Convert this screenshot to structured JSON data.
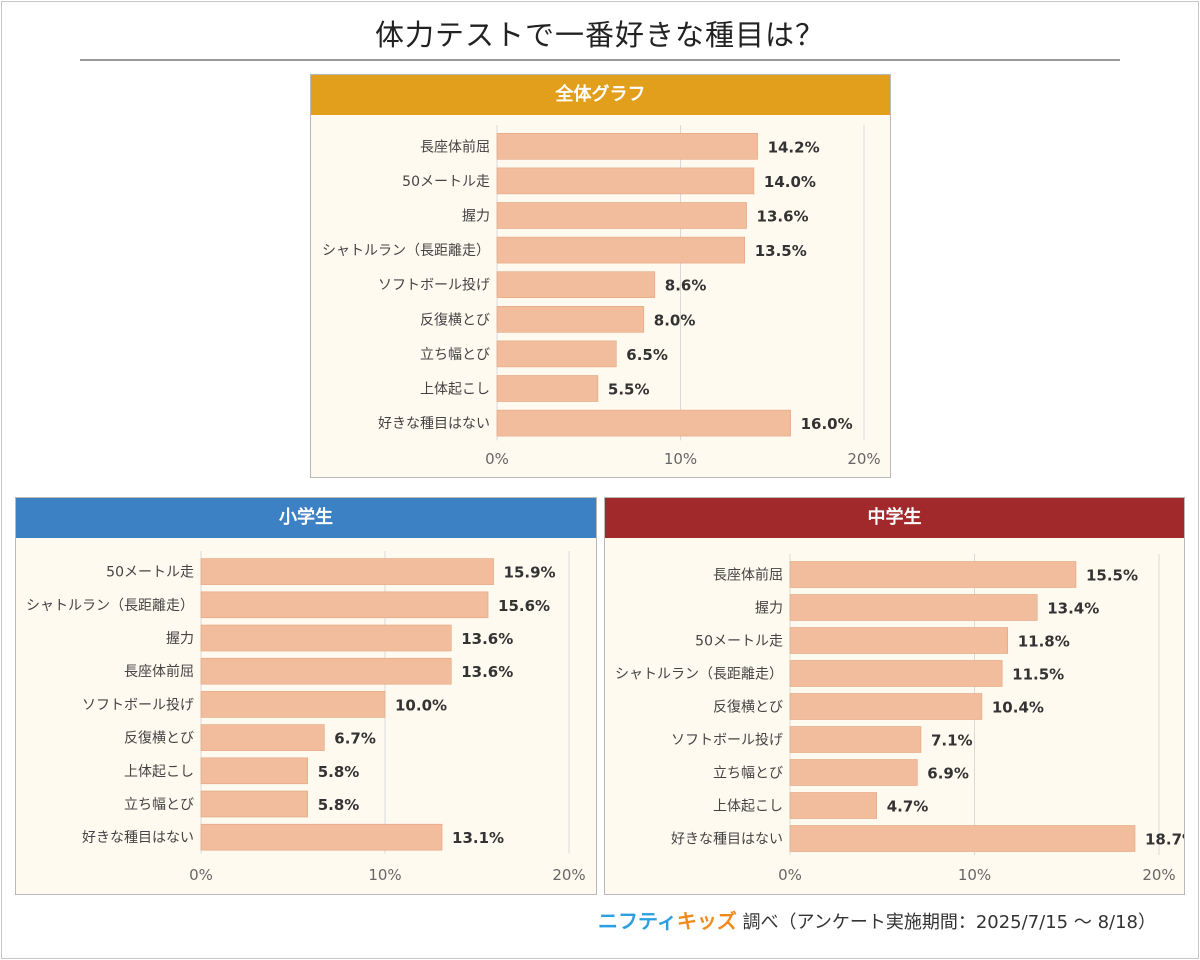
{
  "title": "体力テストで一番好きな種目は？",
  "footer": {
    "brand_part1": "ニフティ",
    "brand_part2": "キッズ",
    "note": " 調べ（アンケート実施期間：2025/7/15 ～ 8/18）"
  },
  "colors": {
    "bar": "#f1bd9c",
    "bar_stroke": "#e3a47f",
    "grid": "#d9d9d9",
    "panel_bg": "#fffaf0",
    "header_all": "#e29f1c",
    "header_elementary": "#3d81c5",
    "header_junior": "#a1282b"
  },
  "chart_data": [
    {
      "type": "bar",
      "orientation": "horizontal",
      "title": "全体グラフ",
      "categories": [
        "長座体前屈",
        "50メートル走",
        "握力",
        "シャトルラン（長距離走）",
        "ソフトボール投げ",
        "反復横とび",
        "立ち幅とび",
        "上体起こし",
        "好きな種目はない"
      ],
      "values": [
        14.2,
        14.0,
        13.6,
        13.5,
        8.6,
        8.0,
        6.5,
        5.5,
        16.0
      ],
      "value_suffix": "%",
      "xlim": [
        0,
        20
      ],
      "xticks": [
        "0%",
        "10%",
        "20%"
      ],
      "grid": true
    },
    {
      "type": "bar",
      "orientation": "horizontal",
      "title": "小学生",
      "categories": [
        "50メートル走",
        "シャトルラン（長距離走）",
        "握力",
        "長座体前屈",
        "ソフトボール投げ",
        "反復横とび",
        "上体起こし",
        "立ち幅とび",
        "好きな種目はない"
      ],
      "values": [
        15.9,
        15.6,
        13.6,
        13.6,
        10.0,
        6.7,
        5.8,
        5.8,
        13.1
      ],
      "value_suffix": "%",
      "xlim": [
        0,
        20
      ],
      "xticks": [
        "0%",
        "10%",
        "20%"
      ],
      "grid": true
    },
    {
      "type": "bar",
      "orientation": "horizontal",
      "title": "中学生",
      "categories": [
        "長座体前屈",
        "握力",
        "50メートル走",
        "シャトルラン（長距離走）",
        "反復横とび",
        "ソフトボール投げ",
        "立ち幅とび",
        "上体起こし",
        "好きな種目はない"
      ],
      "values": [
        15.5,
        13.4,
        11.8,
        11.5,
        10.4,
        7.1,
        6.9,
        4.7,
        18.7
      ],
      "value_suffix": "%",
      "xlim": [
        0,
        20
      ],
      "xticks": [
        "0%",
        "10%",
        "20%"
      ],
      "grid": true
    }
  ]
}
